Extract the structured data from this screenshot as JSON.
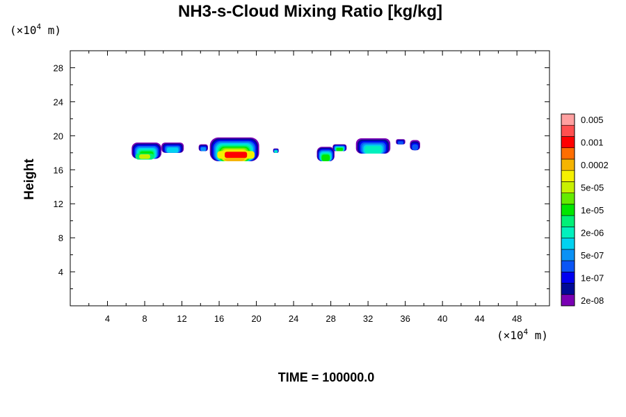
{
  "chart_data": {
    "type": "heatmap",
    "title": "NH3-s-Cloud Mixing Ratio [kg/kg]",
    "xlabel": "",
    "ylabel": "Height",
    "x_unit": {
      "prefix": "(×10",
      "exp": "4",
      "suffix": " m)"
    },
    "y_unit": {
      "prefix": "(×10",
      "exp": "4",
      "suffix": " m)"
    },
    "xlim": [
      0,
      51.5
    ],
    "ylim": [
      0,
      30
    ],
    "x_ticks": [
      4,
      8,
      12,
      16,
      20,
      24,
      28,
      32,
      36,
      40,
      44,
      48
    ],
    "y_ticks": [
      4,
      8,
      12,
      16,
      20,
      24,
      28
    ],
    "footer": "TIME = 100000.0",
    "colorbar": {
      "colors": [
        "#7a00b4",
        "#000a96",
        "#0000f0",
        "#0a55f5",
        "#0a91f5",
        "#00d2f0",
        "#00f0be",
        "#00f078",
        "#00e600",
        "#64eb00",
        "#c8f000",
        "#f5f000",
        "#f5b400",
        "#ff6e00",
        "#ff0000",
        "#ff5050",
        "#ffa0a0"
      ],
      "labels": [
        "2e-08",
        "1e-07",
        "5e-07",
        "2e-06",
        "1e-05",
        "5e-05",
        "0.0002",
        "0.001",
        "0.005"
      ]
    },
    "cloud_features": [
      {
        "x": [
          6.6,
          9.8
        ],
        "y": [
          17.3,
          19.2
        ],
        "max_level": 8,
        "core": {
          "x": [
            7.0,
            9.0
          ],
          "y": [
            17.2,
            17.9
          ]
        }
      },
      {
        "x": [
          9.8,
          12.2
        ],
        "y": [
          18.0,
          19.2
        ],
        "max_level": 5
      },
      {
        "x": [
          13.8,
          14.8
        ],
        "y": [
          18.2,
          19.0
        ],
        "max_level": 4
      },
      {
        "x": [
          15.0,
          20.3
        ],
        "y": [
          17.0,
          19.8
        ],
        "max_level": 12,
        "core": {
          "x": [
            15.8,
            19.8
          ],
          "y": [
            17.3,
            18.2
          ]
        }
      },
      {
        "x": [
          21.8,
          22.4
        ],
        "y": [
          18.0,
          18.5
        ],
        "max_level": 6
      },
      {
        "x": [
          26.5,
          28.4
        ],
        "y": [
          17.0,
          18.7
        ],
        "max_level": 8
      },
      {
        "x": [
          28.2,
          29.7
        ],
        "y": [
          18.2,
          19.0
        ],
        "max_level": 8
      },
      {
        "x": [
          30.7,
          34.4
        ],
        "y": [
          17.9,
          19.7
        ],
        "max_level": 6
      },
      {
        "x": [
          35.0,
          36.0
        ],
        "y": [
          19.0,
          19.6
        ],
        "max_level": 3
      },
      {
        "x": [
          36.5,
          37.6
        ],
        "y": [
          18.3,
          19.5
        ],
        "max_level": 3
      }
    ]
  }
}
